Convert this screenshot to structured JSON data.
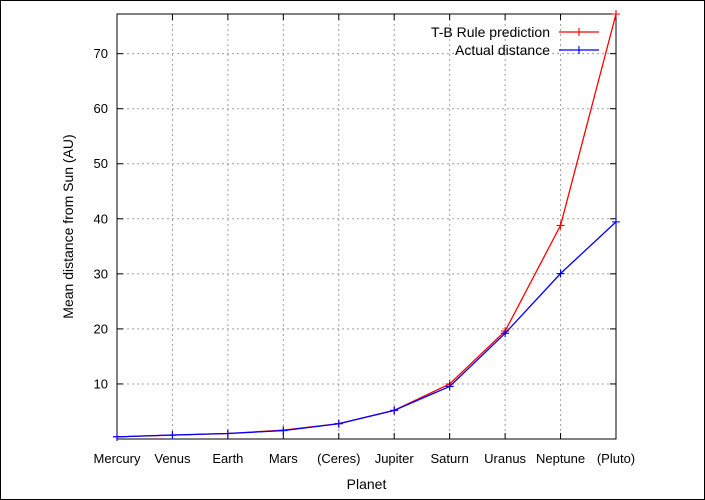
{
  "chart_data": {
    "type": "line",
    "xlabel": "Planet",
    "ylabel": "Mean distance from Sun (AU)",
    "categories": [
      "Mercury",
      "Venus",
      "Earth",
      "Mars",
      "(Ceres)",
      "Jupiter",
      "Saturn",
      "Uranus",
      "Neptune",
      "(Pluto)"
    ],
    "yticks": [
      10,
      20,
      30,
      40,
      50,
      60,
      70
    ],
    "ylim": [
      0,
      77.2
    ],
    "grid": true,
    "legend_position": "top-right",
    "series": [
      {
        "name": "T-B Rule prediction",
        "color": "#ff0000",
        "marker": "plus",
        "values": [
          0.4,
          0.7,
          1.0,
          1.6,
          2.8,
          5.2,
          10.0,
          19.6,
          38.8,
          77.2
        ]
      },
      {
        "name": "Actual distance",
        "color": "#0000ff",
        "marker": "plus",
        "values": [
          0.39,
          0.72,
          1.0,
          1.52,
          2.77,
          5.2,
          9.54,
          19.2,
          30.06,
          39.44
        ]
      }
    ]
  }
}
